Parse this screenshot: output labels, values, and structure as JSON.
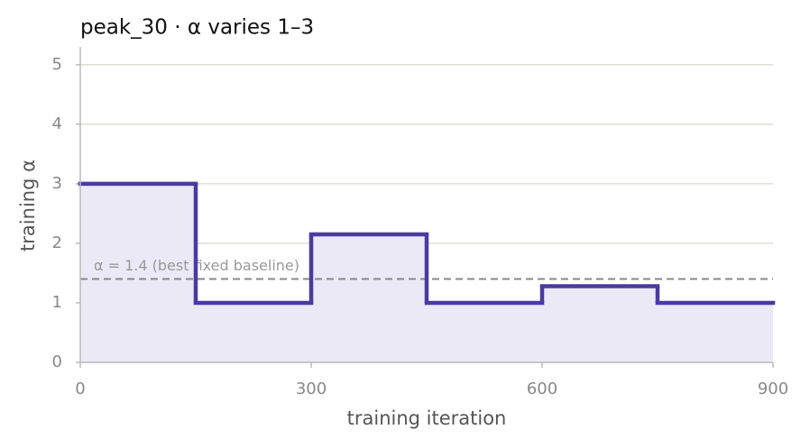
{
  "chart_data": {
    "type": "step",
    "title": "peak_30   ·   α varies 1–3",
    "x_label": "training iteration",
    "y_label": "training α",
    "x": [
      0,
      150,
      300,
      450,
      600,
      750
    ],
    "values": [
      3,
      1,
      2.15,
      1,
      1.28,
      1
    ],
    "color": "#4b3aa0",
    "fill_color": "#ebe9f6",
    "xlim": [
      0,
      900
    ],
    "ylim": [
      0,
      5.3
    ],
    "xticks": [
      0,
      300,
      600,
      900
    ],
    "yticks": [
      0,
      1,
      2,
      3,
      4,
      5
    ],
    "grid": true,
    "reference": {
      "value": 1.4,
      "label": "α = 1.4 (best fixed baseline)"
    }
  }
}
